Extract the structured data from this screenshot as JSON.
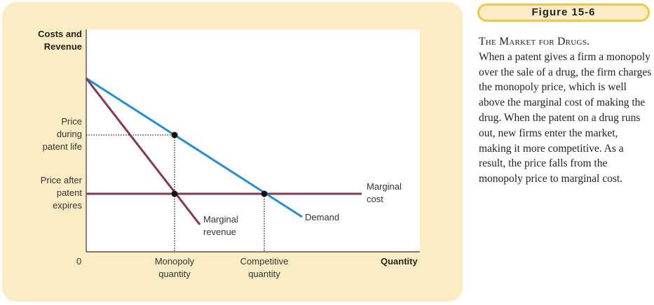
{
  "figure": {
    "title": "Figure 15-6",
    "caption_heading": "The Market for Drugs.",
    "caption_body": "When a patent gives a firm a monopoly over the sale of a drug, the firm charges the monopoly price, which is well above the marginal cost of making the drug. When the patent on a drug runs out, new firms enter the market, making it more competitive. As a result, the price falls from the monopoly price to marginal cost."
  },
  "diagram": {
    "y_axis_label_line1": "Costs and",
    "y_axis_label_line2": "Revenue",
    "x_axis_label": "Quantity",
    "origin": "0",
    "price_patent": [
      "Price",
      "during",
      "patent life"
    ],
    "price_after": [
      "Price after",
      "patent",
      "expires"
    ],
    "monopoly_quantity": [
      "Monopoly",
      "quantity"
    ],
    "competitive_quantity": [
      "Competitive",
      "quantity"
    ],
    "marginal_cost": [
      "Marginal",
      "cost"
    ],
    "marginal_revenue": [
      "Marginal",
      "revenue"
    ],
    "demand": "Demand",
    "colors": {
      "demand": "#1f8fdc",
      "marginal_revenue": "#8c3550",
      "marginal_cost": "#8c3550",
      "panel": "#fbecc4",
      "accent": "#f0c845"
    }
  }
}
